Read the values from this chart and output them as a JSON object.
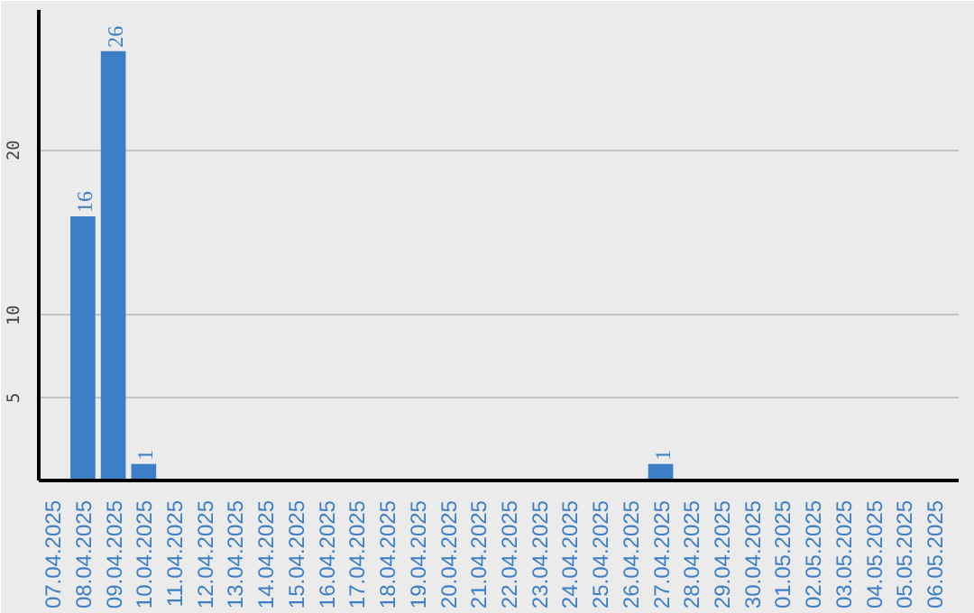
{
  "chart_data": {
    "type": "bar",
    "categories": [
      "07.04.2025",
      "08.04.2025",
      "09.04.2025",
      "10.04.2025",
      "11.04.2025",
      "12.04.2025",
      "13.04.2025",
      "14.04.2025",
      "15.04.2025",
      "16.04.2025",
      "17.04.2025",
      "18.04.2025",
      "19.04.2025",
      "20.04.2025",
      "21.04.2025",
      "22.04.2025",
      "23.04.2025",
      "24.04.2025",
      "25.04.2025",
      "26.04.2025",
      "27.04.2025",
      "28.04.2025",
      "29.04.2025",
      "30.04.2025",
      "01.05.2025",
      "02.05.2025",
      "03.05.2025",
      "04.05.2025",
      "05.05.2025",
      "06.05.2025"
    ],
    "values": [
      0,
      16,
      26,
      1,
      0,
      0,
      0,
      0,
      0,
      0,
      0,
      0,
      0,
      0,
      0,
      0,
      0,
      0,
      0,
      0,
      1,
      0,
      0,
      0,
      0,
      0,
      0,
      0,
      0,
      0
    ],
    "value_labels": [
      null,
      "16",
      "26",
      "1",
      null,
      null,
      null,
      null,
      null,
      null,
      null,
      null,
      null,
      null,
      null,
      null,
      null,
      null,
      null,
      null,
      "1",
      null,
      null,
      null,
      null,
      null,
      null,
      null,
      null,
      null
    ],
    "color": "#3d7fc6",
    "ylim": [
      0,
      28.5
    ],
    "yticks": [
      5,
      10,
      20
    ],
    "grid": "y"
  }
}
